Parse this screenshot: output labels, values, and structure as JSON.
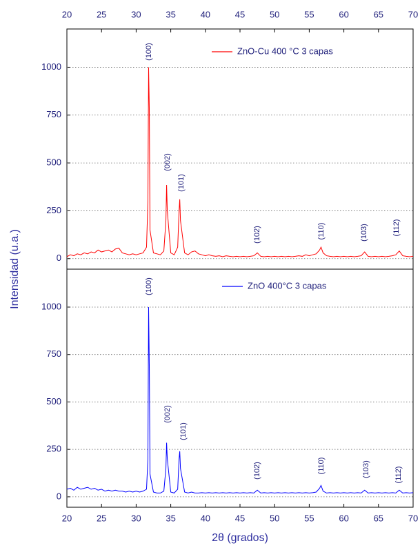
{
  "chart_data": [
    {
      "type": "line",
      "ylabel": "Intensidad (u.a.)",
      "x": [
        20,
        20.5,
        21,
        21.5,
        22,
        22.5,
        23,
        23.5,
        24,
        24.5,
        25,
        25.5,
        26,
        26.5,
        27,
        27.5,
        28,
        28.5,
        29,
        29.5,
        30,
        30.5,
        31,
        31.5,
        31.7,
        31.8,
        31.9,
        32,
        32.5,
        33,
        33.5,
        34,
        34.3,
        34.4,
        34.5,
        35,
        35.5,
        36,
        36.2,
        36.3,
        36.4,
        37,
        37.5,
        38,
        38.5,
        39,
        39.5,
        40,
        40.5,
        41,
        41.5,
        42,
        42.5,
        43,
        43.5,
        44,
        44.5,
        45,
        45.5,
        46,
        46.5,
        47,
        47.5,
        48,
        48.5,
        49,
        49.5,
        50,
        50.5,
        51,
        51.5,
        52,
        52.5,
        53,
        53.5,
        54,
        54.5,
        55,
        55.5,
        56,
        56.5,
        56.7,
        57,
        57.5,
        58,
        58.5,
        59,
        59.5,
        60,
        60.5,
        61,
        61.5,
        62,
        62.5,
        63,
        63.5,
        64,
        64.5,
        65,
        65.5,
        66,
        66.5,
        67,
        67.5,
        68,
        68.5,
        69,
        69.5,
        70
      ],
      "series": [
        {
          "name": "ZnO-Cu 400 °C 3 capas",
          "color": "#ff0000",
          "values": [
            10,
            20,
            15,
            25,
            20,
            30,
            25,
            35,
            30,
            45,
            35,
            40,
            45,
            35,
            50,
            55,
            30,
            25,
            20,
            25,
            20,
            25,
            30,
            60,
            300,
            1000,
            790,
            150,
            30,
            25,
            20,
            40,
            200,
            385,
            250,
            30,
            20,
            60,
            250,
            310,
            200,
            30,
            20,
            35,
            40,
            25,
            20,
            15,
            20,
            15,
            12,
            15,
            10,
            15,
            12,
            10,
            12,
            10,
            12,
            10,
            12,
            15,
            30,
            12,
            10,
            12,
            10,
            12,
            10,
            12,
            10,
            12,
            10,
            12,
            15,
            12,
            20,
            15,
            20,
            25,
            45,
            60,
            30,
            15,
            12,
            10,
            12,
            10,
            12,
            10,
            12,
            10,
            12,
            15,
            35,
            12,
            10,
            12,
            10,
            12,
            10,
            12,
            15,
            20,
            40,
            15,
            12,
            10,
            12
          ]
        }
      ],
      "annotations": [
        "(100)",
        "(002)",
        "(101)",
        "(102)",
        "(110)",
        "(103)",
        "(112)"
      ],
      "xlim": [
        20,
        70
      ],
      "xticks": [
        20,
        25,
        30,
        35,
        40,
        45,
        50,
        55,
        60,
        65,
        70
      ],
      "ylim": [
        -55,
        1200
      ],
      "yticks": [
        0,
        250,
        500,
        750,
        1000
      ],
      "grid": true,
      "legend": "upper right"
    },
    {
      "type": "line",
      "xlabel": "2θ (grados)",
      "x": [
        20,
        20.5,
        21,
        21.5,
        22,
        22.5,
        23,
        23.5,
        24,
        24.5,
        25,
        25.5,
        26,
        26.5,
        27,
        27.5,
        28,
        28.5,
        29,
        29.5,
        30,
        30.5,
        31,
        31.5,
        31.7,
        31.8,
        31.9,
        32,
        32.5,
        33,
        33.5,
        34,
        34.3,
        34.4,
        34.5,
        35,
        35.5,
        36,
        36.2,
        36.3,
        36.4,
        37,
        37.5,
        38,
        38.5,
        39,
        39.5,
        40,
        40.5,
        41,
        41.5,
        42,
        42.5,
        43,
        43.5,
        44,
        44.5,
        45,
        45.5,
        46,
        46.5,
        47,
        47.5,
        48,
        48.5,
        49,
        49.5,
        50,
        50.5,
        51,
        51.5,
        52,
        52.5,
        53,
        53.5,
        54,
        54.5,
        55,
        55.5,
        56,
        56.5,
        56.7,
        57,
        57.5,
        58,
        58.5,
        59,
        59.5,
        60,
        60.5,
        61,
        61.5,
        62,
        62.5,
        63,
        63.5,
        64,
        64.5,
        65,
        65.5,
        66,
        66.5,
        67,
        67.5,
        68,
        68.5,
        69,
        69.5,
        70
      ],
      "series": [
        {
          "name": "ZnO 400°C 3 capas",
          "color": "#0000ff",
          "values": [
            40,
            45,
            35,
            50,
            40,
            45,
            50,
            40,
            45,
            35,
            40,
            30,
            35,
            30,
            35,
            30,
            30,
            25,
            30,
            25,
            30,
            25,
            30,
            40,
            200,
            1000,
            700,
            120,
            25,
            20,
            20,
            30,
            150,
            285,
            200,
            25,
            20,
            40,
            200,
            240,
            150,
            25,
            20,
            25,
            20,
            20,
            22,
            20,
            22,
            20,
            22,
            20,
            22,
            20,
            22,
            20,
            22,
            20,
            22,
            20,
            22,
            20,
            35,
            20,
            22,
            20,
            22,
            20,
            22,
            20,
            22,
            20,
            22,
            20,
            22,
            20,
            22,
            20,
            22,
            25,
            45,
            60,
            30,
            20,
            22,
            20,
            22,
            20,
            22,
            20,
            22,
            20,
            22,
            20,
            35,
            20,
            22,
            20,
            22,
            20,
            22,
            20,
            22,
            20,
            35,
            20,
            22,
            20,
            22
          ]
        }
      ],
      "annotations": [
        "(100)",
        "(002)",
        "(101)",
        "(102)",
        "(110)",
        "(103)",
        "(112)"
      ],
      "xlim": [
        20,
        70
      ],
      "xticks": [
        20,
        25,
        30,
        35,
        40,
        45,
        50,
        55,
        60,
        65,
        70
      ],
      "ylim": [
        -55,
        1200
      ],
      "yticks": [
        0,
        250,
        500,
        750,
        1000
      ],
      "grid": true,
      "legend": "upper right"
    }
  ]
}
